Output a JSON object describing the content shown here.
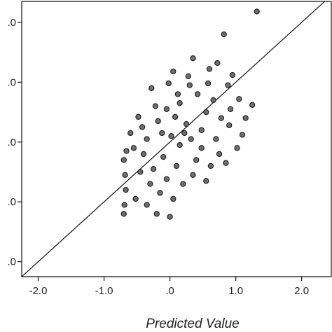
{
  "chart_data": {
    "type": "scatter",
    "title": "",
    "xlabel": "Predicted Value",
    "ylabel": "",
    "xlim": [
      -2.25,
      2.45
    ],
    "ylim": [
      -2.25,
      2.35
    ],
    "x_ticks": [
      {
        "value": -2.0,
        "label": "-2.0"
      },
      {
        "value": -1.0,
        "label": "-1.0"
      },
      {
        "value": 0.0,
        "label": ".0"
      },
      {
        "value": 1.0,
        "label": "1.0"
      },
      {
        "value": 2.0,
        "label": "2.0"
      }
    ],
    "y_ticks": [
      {
        "value": -2.0,
        "label": ".0"
      },
      {
        "value": -1.0,
        "label": ".0"
      },
      {
        "value": 0.0,
        "label": ".0"
      },
      {
        "value": 1.0,
        "label": ".0"
      },
      {
        "value": 2.0,
        "label": ".0"
      }
    ],
    "reference_line": {
      "slope": 1,
      "intercept": 0
    },
    "grid": false,
    "marker_color": "#6f6f6f",
    "marker_edge_color": "#1a1a1a",
    "points": [
      [
        1.32,
        2.18
      ],
      [
        0.82,
        1.8
      ],
      [
        0.35,
        1.4
      ],
      [
        0.72,
        1.32
      ],
      [
        0.95,
        1.12
      ],
      [
        0.6,
        1.22
      ],
      [
        0.05,
        1.18
      ],
      [
        -0.28,
        0.9
      ],
      [
        0.88,
        0.95
      ],
      [
        1.05,
        0.72
      ],
      [
        1.25,
        0.62
      ],
      [
        0.42,
        0.8
      ],
      [
        0.15,
        0.65
      ],
      [
        -0.05,
        0.55
      ],
      [
        0.55,
        0.5
      ],
      [
        1.1,
        0.12
      ],
      [
        0.9,
        0.28
      ],
      [
        0.25,
        0.3
      ],
      [
        -0.18,
        0.35
      ],
      [
        0.08,
        0.42
      ],
      [
        -0.42,
        0.25
      ],
      [
        0.7,
        0.05
      ],
      [
        0.48,
        0.2
      ],
      [
        0.32,
        0.05
      ],
      [
        1.02,
        -0.1
      ],
      [
        0.85,
        -0.35
      ],
      [
        0.62,
        -0.4
      ],
      [
        0.4,
        -0.3
      ],
      [
        -0.1,
        -0.25
      ],
      [
        0.15,
        -0.05
      ],
      [
        -0.35,
        0.05
      ],
      [
        -0.55,
        -0.1
      ],
      [
        -0.7,
        -0.3
      ],
      [
        -0.68,
        -0.55
      ],
      [
        -0.67,
        -0.8
      ],
      [
        -0.69,
        -1.05
      ],
      [
        -0.7,
        -1.2
      ],
      [
        -0.66,
        -0.15
      ],
      [
        -0.45,
        -0.5
      ],
      [
        -0.3,
        -0.7
      ],
      [
        -0.15,
        -0.85
      ],
      [
        0.05,
        -0.95
      ],
      [
        0.2,
        -0.7
      ],
      [
        -0.52,
        -0.95
      ],
      [
        0.35,
        -0.55
      ],
      [
        -0.25,
        -0.45
      ],
      [
        0.1,
        -0.4
      ],
      [
        -0.4,
        -0.2
      ],
      [
        0.02,
        0.1
      ],
      [
        -0.12,
        0.15
      ],
      [
        0.22,
        0.15
      ],
      [
        0.48,
        -0.1
      ],
      [
        0.12,
        0.8
      ],
      [
        -0.02,
        0.98
      ],
      [
        0.3,
        0.95
      ],
      [
        0.66,
        0.7
      ],
      [
        0.78,
        0.4
      ],
      [
        1.15,
        0.4
      ],
      [
        0.58,
        0.98
      ],
      [
        0.28,
        1.1
      ],
      [
        -0.22,
        0.6
      ],
      [
        -0.48,
        0.42
      ],
      [
        -0.6,
        0.15
      ],
      [
        0.92,
        0.55
      ],
      [
        0.75,
        -0.2
      ],
      [
        0.55,
        -0.65
      ],
      [
        -0.05,
        -0.62
      ],
      [
        -0.2,
        -1.2
      ],
      [
        0.0,
        -1.25
      ],
      [
        -0.35,
        -1.05
      ]
    ]
  }
}
